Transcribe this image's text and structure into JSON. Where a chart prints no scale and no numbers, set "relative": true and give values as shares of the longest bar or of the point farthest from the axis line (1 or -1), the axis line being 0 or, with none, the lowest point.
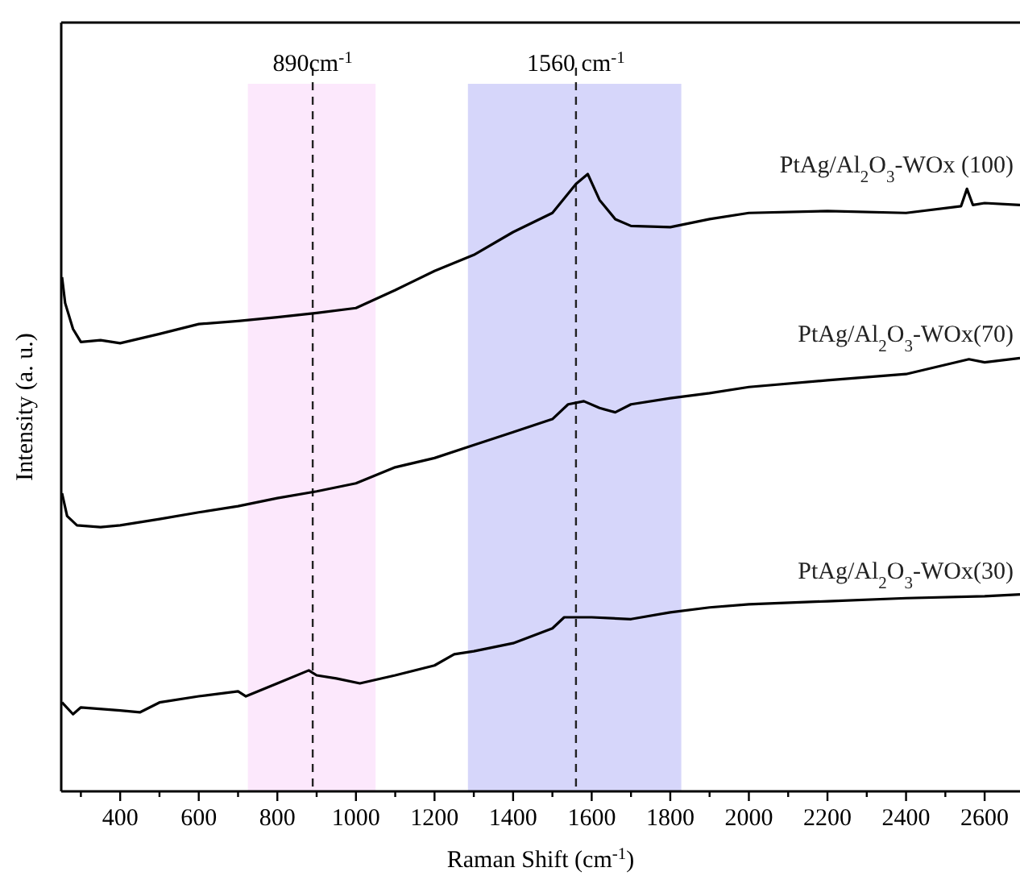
{
  "chart_data": {
    "type": "line",
    "relative": true,
    "xlabel": "Raman Shift (cm$^{-1}$)",
    "ylabel": "Intensity (a. u.)",
    "xlim": [
      250,
      2690
    ],
    "xticks": [
      {
        "value": 300,
        "label": null
      },
      400,
      {
        "value": 500,
        "label": null
      },
      600,
      {
        "value": 700,
        "label": null
      },
      800,
      {
        "value": 900,
        "label": null
      },
      1000,
      {
        "value": 1100,
        "label": null
      },
      1200,
      {
        "value": 1300,
        "label": null
      },
      1400,
      {
        "value": 1500,
        "label": null
      },
      1600,
      {
        "value": 1700,
        "label": null
      },
      1800,
      {
        "value": 1900,
        "label": null
      },
      2000,
      {
        "value": 2100,
        "label": null
      },
      2200,
      {
        "value": 2300,
        "label": null
      },
      2400,
      {
        "value": 2500,
        "label": null
      },
      2600
    ],
    "bands": [
      {
        "axis": "x",
        "from": 725,
        "to": 1050,
        "color": "#fce8fc"
      },
      {
        "axis": "x",
        "from": 1285,
        "to": 1828,
        "color": "#d6d6fa"
      }
    ],
    "ref_lines": [
      {
        "axis": "x",
        "value": 890,
        "label": "890cm$^{-1}$",
        "line_style": "dashed"
      },
      {
        "axis": "x",
        "value": 1560,
        "label": "1560 cm$^{-1}$",
        "line_style": "dashed"
      }
    ],
    "series": [
      {
        "name": "PtAg/Al$_{2}$O$_{3}$-WOx (100)",
        "color": "#000000",
        "x": [
          252,
          260,
          280,
          300,
          350,
          400,
          500,
          600,
          700,
          800,
          900,
          1000,
          1100,
          1200,
          1300,
          1400,
          1500,
          1560,
          1590,
          1620,
          1660,
          1700,
          1800,
          1900,
          2000,
          2200,
          2400,
          2540,
          2555,
          2570,
          2600,
          2690
        ],
        "values": [
          0.833,
          0.791,
          0.749,
          0.728,
          0.731,
          0.726,
          0.741,
          0.757,
          0.762,
          0.768,
          0.775,
          0.783,
          0.812,
          0.843,
          0.869,
          0.906,
          0.937,
          0.984,
          1,
          0.958,
          0.927,
          0.916,
          0.914,
          0.927,
          0.937,
          0.94,
          0.937,
          0.948,
          0.976,
          0.95,
          0.953,
          0.95
        ]
      },
      {
        "name": "PtAg/Al$_{2}$O$_{3}$-WOx(70)",
        "color": "#000000",
        "x": [
          252,
          265,
          290,
          350,
          400,
          500,
          600,
          700,
          800,
          900,
          1000,
          1100,
          1200,
          1300,
          1400,
          1500,
          1540,
          1580,
          1620,
          1660,
          1700,
          1800,
          1900,
          2000,
          2200,
          2400,
          2560,
          2600,
          2690
        ],
        "values": [
          0.483,
          0.446,
          0.431,
          0.428,
          0.431,
          0.441,
          0.452,
          0.462,
          0.475,
          0.486,
          0.499,
          0.525,
          0.54,
          0.561,
          0.582,
          0.603,
          0.627,
          0.632,
          0.621,
          0.614,
          0.627,
          0.637,
          0.645,
          0.655,
          0.666,
          0.676,
          0.7,
          0.695,
          0.702
        ]
      },
      {
        "name": "PtAg/Al$_{2}$O$_{3}$-WOx(30)",
        "color": "#000000",
        "x": [
          252,
          280,
          300,
          400,
          450,
          500,
          600,
          700,
          720,
          800,
          880,
          900,
          950,
          1010,
          1100,
          1200,
          1250,
          1300,
          1400,
          1500,
          1530,
          1600,
          1700,
          1800,
          1900,
          2000,
          2200,
          2400,
          2600,
          2690
        ],
        "values": [
          0.144,
          0.125,
          0.136,
          0.131,
          0.128,
          0.144,
          0.154,
          0.162,
          0.154,
          0.175,
          0.196,
          0.188,
          0.183,
          0.175,
          0.188,
          0.204,
          0.222,
          0.227,
          0.24,
          0.264,
          0.282,
          0.282,
          0.279,
          0.29,
          0.298,
          0.303,
          0.308,
          0.313,
          0.316,
          0.319
        ]
      }
    ]
  }
}
